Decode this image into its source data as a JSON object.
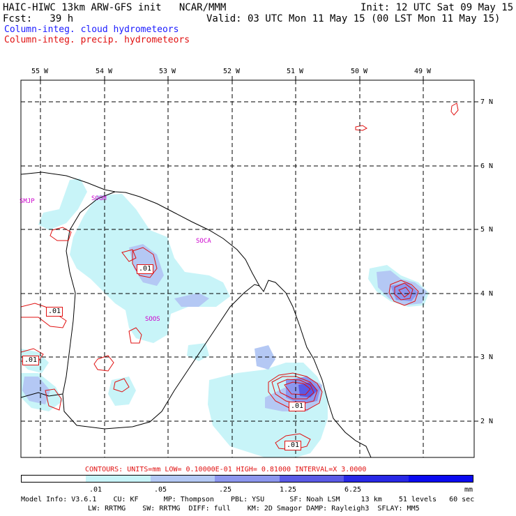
{
  "header": {
    "line1_left": "HAIC-HIWC 13km ARW-GFS init   NCAR/MMM",
    "line1_right": "Init: 12 UTC Sat 09 May 15",
    "line2_left": "Fcst:   39 h",
    "line2_right": "Valid: 03 UTC Mon 11 May 15 (00 LST Mon 11 May 15)",
    "field1": "Column-integ. cloud hydrometeors",
    "field2": "Column-integ. precip. hydrometeors"
  },
  "map": {
    "lon_labels": [
      "55 W",
      "54 W",
      "53 W",
      "52 W",
      "51 W",
      "50 W",
      "49 W"
    ],
    "lat_labels": [
      "7 N",
      "6 N",
      "5 N",
      "4 N",
      "3 N",
      "2 N"
    ],
    "stations": [
      "SMJP",
      "SOGM",
      "SOCA",
      "SOOS"
    ],
    "contour_labels": [
      ".01",
      ".01",
      ".01",
      ".01",
      ".01"
    ]
  },
  "legend": {
    "contours_text": "CONTOURS:  UNITS=mm  LOW= 0.10000E-01  HIGH= 0.81000      INTERVAL=X  3.0000",
    "colors": [
      "#ffffff",
      "#c8f4f8",
      "#b4c8f4",
      "#8c96ee",
      "#5a5ae6",
      "#2828e6",
      "#0a0af0"
    ],
    "ticks": [
      ".01",
      ".05",
      ".25",
      "1.25",
      "6.25",
      "mm"
    ]
  },
  "footer": {
    "line1": "Model Info: V3.6.1    CU: KF      MP: Thompson    PBL: YSU      SF: Noah LSM     13 km    51 levels   60 sec",
    "line2": "LW: RRTMG    SW: RRTMG  DIFF: full    KM: 2D Smagor DAMP: Rayleigh3  SFLAY: MM5"
  }
}
